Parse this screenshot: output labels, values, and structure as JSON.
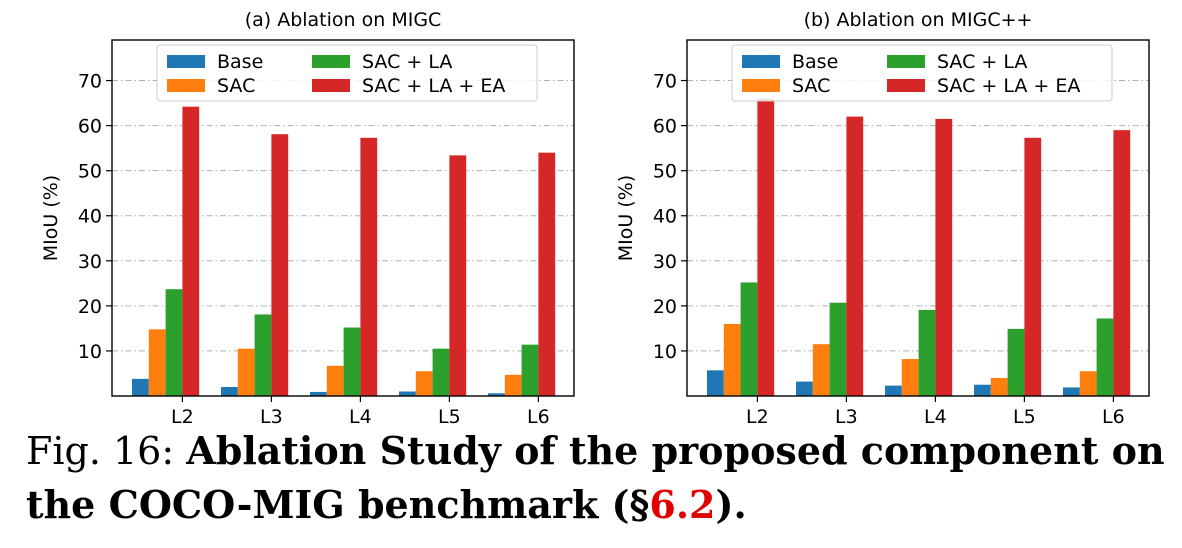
{
  "colors": {
    "Base": "#1f77b4",
    "SAC": "#ff7f0e",
    "SAC + LA": "#2ca02c",
    "SAC + LA + EA": "#d62728"
  },
  "chart_data": [
    {
      "type": "bar",
      "title": "(a) Ablation on MIGC",
      "xlabel": "",
      "ylabel": "MIoU (%)",
      "ylim": [
        0,
        79
      ],
      "yticks": [
        10,
        20,
        30,
        40,
        50,
        60,
        70
      ],
      "categories": [
        "L2",
        "L3",
        "L4",
        "L5",
        "L6"
      ],
      "grid": "horizontal dash-dot",
      "legend_position": "top",
      "series": [
        {
          "name": "Base",
          "values": [
            3.8,
            2.0,
            0.9,
            1.0,
            0.6
          ]
        },
        {
          "name": "SAC",
          "values": [
            14.8,
            10.5,
            6.7,
            5.5,
            4.7
          ]
        },
        {
          "name": "SAC + LA",
          "values": [
            23.7,
            18.1,
            15.2,
            10.5,
            11.4
          ]
        },
        {
          "name": "SAC + LA + EA",
          "values": [
            64.2,
            58.1,
            57.3,
            53.4,
            54.0
          ]
        }
      ]
    },
    {
      "type": "bar",
      "title": "(b) Ablation on MIGC++",
      "xlabel": "",
      "ylabel": "MIoU (%)",
      "ylim": [
        0,
        79
      ],
      "yticks": [
        10,
        20,
        30,
        40,
        50,
        60,
        70
      ],
      "categories": [
        "L2",
        "L3",
        "L4",
        "L5",
        "L6"
      ],
      "grid": "horizontal dash-dot",
      "legend_position": "top",
      "series": [
        {
          "name": "Base",
          "values": [
            5.7,
            3.2,
            2.3,
            2.5,
            1.9
          ]
        },
        {
          "name": "SAC",
          "values": [
            16.0,
            11.5,
            8.2,
            4.0,
            5.5
          ]
        },
        {
          "name": "SAC + LA",
          "values": [
            25.2,
            20.7,
            19.1,
            14.9,
            17.2
          ]
        },
        {
          "name": "SAC + LA + EA",
          "values": [
            66.0,
            62.0,
            61.5,
            57.3,
            59.0
          ]
        }
      ]
    }
  ],
  "caption": {
    "label": "Fig. 16:",
    "title": "Ablation Study of the proposed component on the COCO-MIG benchmark (§",
    "ref": "6.2",
    "end": ")."
  }
}
